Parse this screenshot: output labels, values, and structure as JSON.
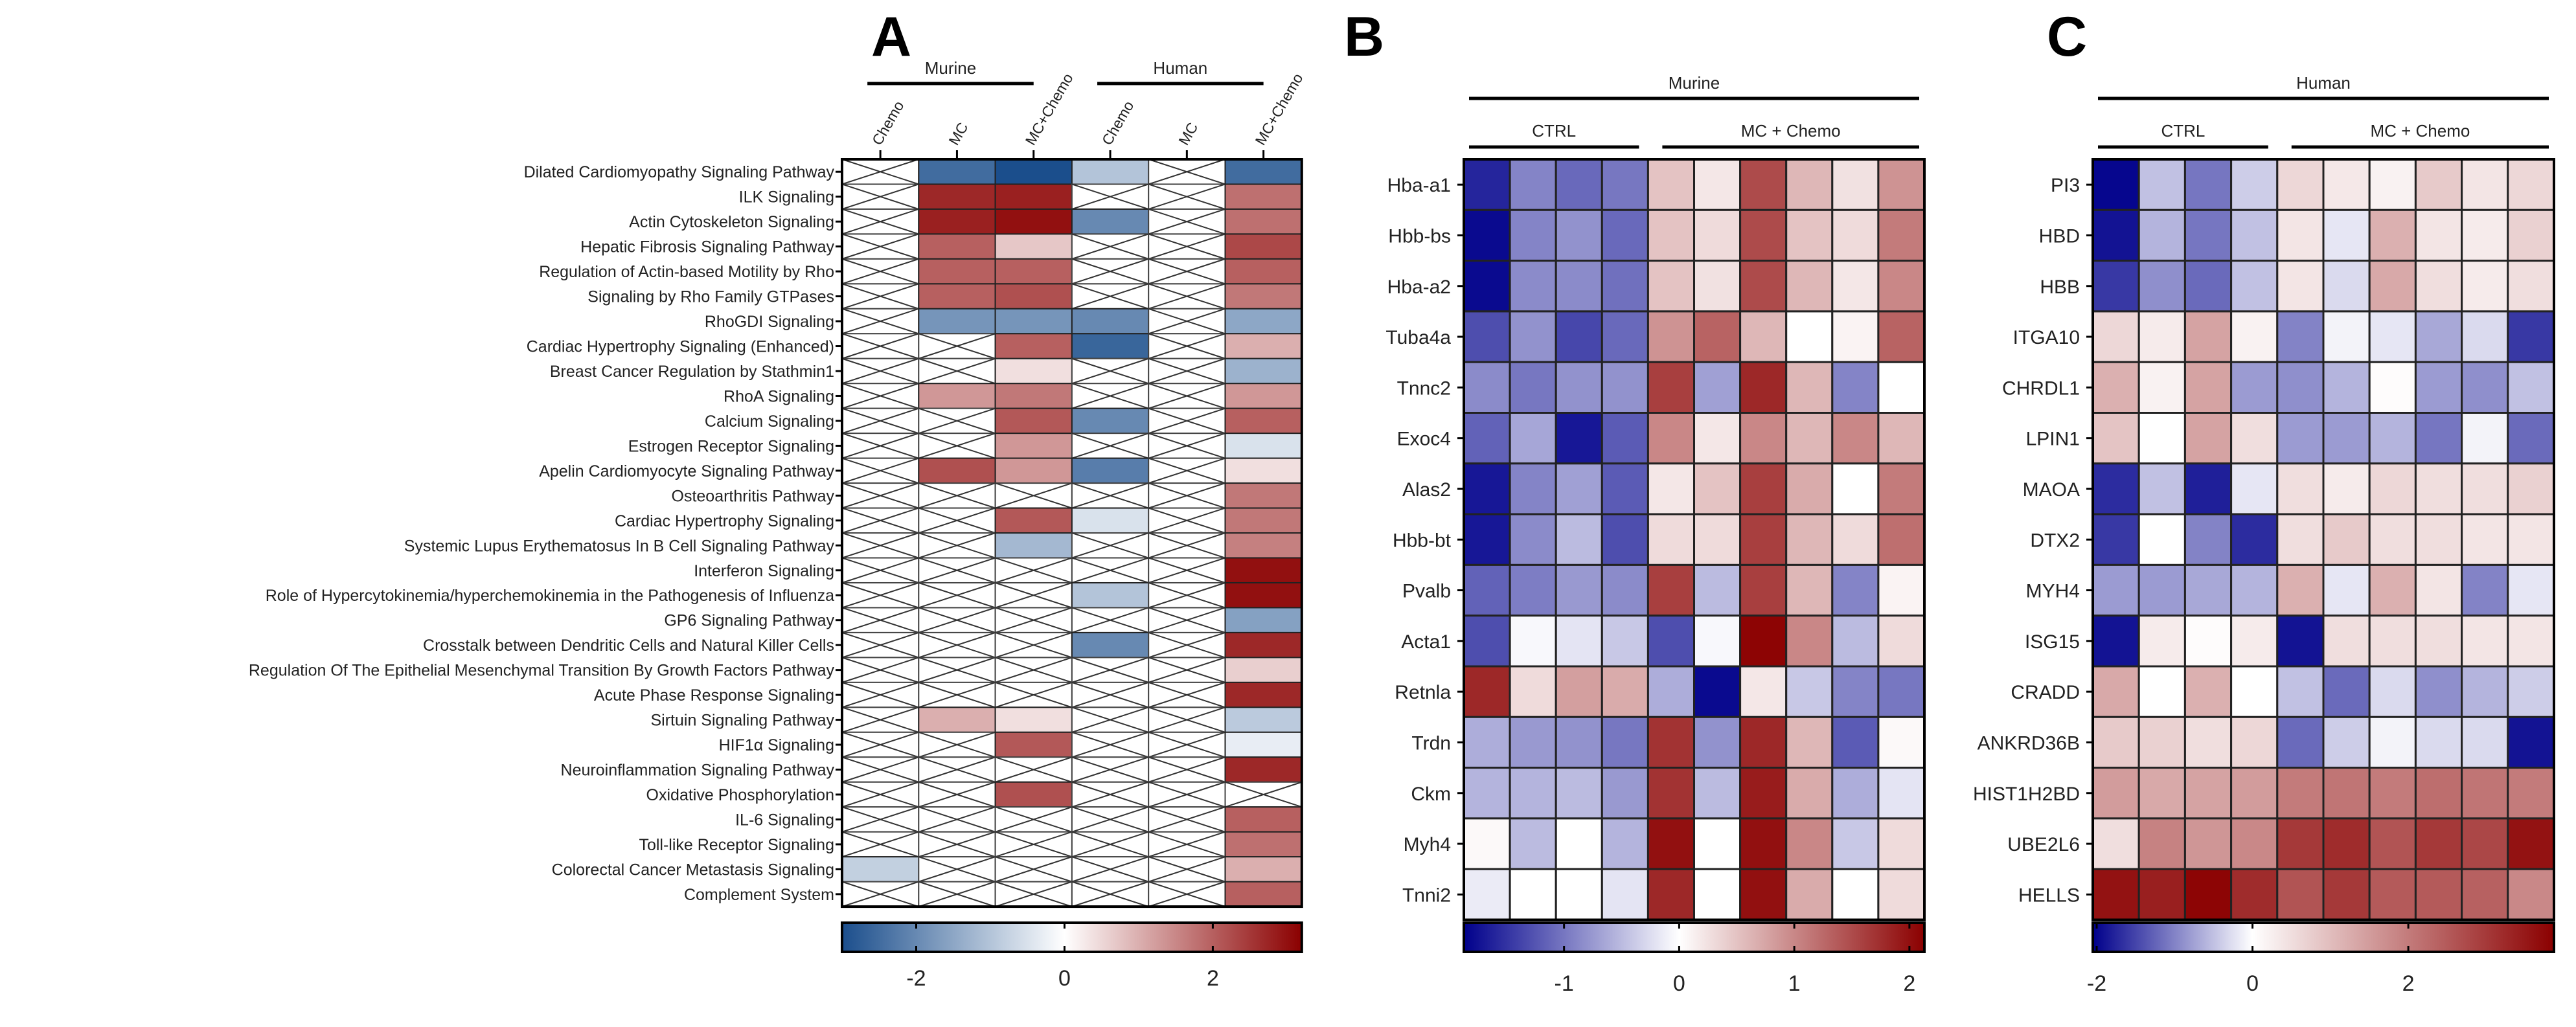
{
  "chart_data": [
    {
      "type": "heatmap",
      "panel_letter": "A",
      "column_groups": [
        {
          "label": "Murine",
          "columns": [
            0,
            1,
            2
          ]
        },
        {
          "label": "Human",
          "columns": [
            3,
            4,
            5
          ]
        }
      ],
      "columns": [
        "Chemo",
        "MC",
        "MC+Chemo",
        "Chemo",
        "MC",
        "MC+Chemo"
      ],
      "rows": [
        "Dilated Cardiomyopathy Signaling Pathway",
        "ILK Signaling",
        "Actin Cytoskeleton Signaling",
        "Hepatic Fibrosis Signaling Pathway",
        "Regulation of Actin-based Motility by Rho",
        "Signaling by Rho Family GTPases",
        "RhoGDI Signaling",
        "Cardiac Hypertrophy Signaling (Enhanced)",
        "Breast Cancer Regulation by Stathmin1",
        "RhoA Signaling",
        "Calcium Signaling",
        "Estrogen Receptor Signaling",
        "Apelin Cardiomyocyte Signaling Pathway",
        "Osteoarthritis Pathway",
        "Cardiac Hypertrophy Signaling",
        "Systemic Lupus Erythematosus In B Cell Signaling Pathway",
        "Interferon Signaling",
        "Role of Hypercytokinemia/hyperchemokinemia in the Pathogenesis of Influenza",
        "GP6 Signaling Pathway",
        "Crosstalk between Dendritic Cells and Natural Killer Cells",
        "Regulation Of The Epithelial Mesenchymal Transition By Growth Factors Pathway",
        "Acute Phase Response Signaling",
        "Sirtuin Signaling Pathway",
        "HIF1α Signaling",
        "Neuroinflammation Signaling Pathway",
        "Oxidative Phosphorylation",
        "IL-6 Signaling",
        "Toll-like Receptor Signaling",
        "Colorectal Cancer Metastasis Signaling",
        "Complement System"
      ],
      "values": [
        [
          null,
          -2.5,
          -3.0,
          -1.0,
          null,
          -2.5
        ],
        [
          null,
          2.7,
          2.8,
          null,
          null,
          1.8
        ],
        [
          null,
          2.8,
          3.0,
          -2.0,
          null,
          1.8
        ],
        [
          null,
          2.0,
          0.7,
          null,
          null,
          2.3
        ],
        [
          null,
          2.0,
          2.0,
          null,
          null,
          2.0
        ],
        [
          null,
          2.0,
          2.2,
          null,
          null,
          1.7
        ],
        [
          null,
          -1.8,
          -1.8,
          -2.0,
          null,
          -1.5
        ],
        [
          null,
          null,
          2.0,
          -2.6,
          null,
          1.0
        ],
        [
          null,
          null,
          0.4,
          null,
          null,
          -1.3
        ],
        [
          null,
          1.3,
          1.7,
          null,
          null,
          1.3
        ],
        [
          null,
          null,
          2.1,
          -2.0,
          null,
          2.0
        ],
        [
          null,
          null,
          1.3,
          null,
          null,
          -0.5
        ],
        [
          null,
          2.2,
          1.3,
          -2.2,
          null,
          0.4
        ],
        [
          null,
          null,
          null,
          null,
          null,
          1.7
        ],
        [
          null,
          null,
          2.1,
          -0.5,
          null,
          1.7
        ],
        [
          null,
          null,
          -1.2,
          null,
          null,
          1.6
        ],
        [
          null,
          null,
          null,
          null,
          null,
          3.0
        ],
        [
          null,
          null,
          null,
          -1.0,
          null,
          3.0
        ],
        [
          null,
          null,
          null,
          null,
          null,
          -1.6
        ],
        [
          null,
          null,
          null,
          -2.0,
          null,
          2.7
        ],
        [
          null,
          null,
          null,
          null,
          null,
          0.6
        ],
        [
          null,
          null,
          null,
          null,
          null,
          2.7
        ],
        [
          null,
          1.0,
          0.4,
          null,
          null,
          -0.9
        ],
        [
          null,
          null,
          2.1,
          null,
          null,
          -0.3
        ],
        [
          null,
          null,
          null,
          null,
          null,
          2.7
        ],
        [
          null,
          null,
          2.2,
          null,
          null,
          null
        ],
        [
          null,
          null,
          null,
          null,
          null,
          2.0
        ],
        [
          null,
          null,
          null,
          null,
          null,
          1.8
        ],
        [
          -0.8,
          null,
          null,
          null,
          null,
          1.0
        ],
        [
          null,
          null,
          null,
          null,
          null,
          2.0
        ]
      ],
      "colorbar": {
        "min": -3.0,
        "max": 3.2,
        "ticks": [
          "-2",
          "0",
          "2"
        ]
      },
      "colors": {
        "low": "#1b4e8c",
        "mid": "#ffffff",
        "high": "#8b0000"
      }
    },
    {
      "type": "heatmap",
      "panel_letter": "B",
      "top_group": "Murine",
      "column_groups": [
        {
          "label": "CTRL",
          "columns": [
            0,
            1,
            2,
            3
          ]
        },
        {
          "label": "MC + Chemo",
          "columns": [
            4,
            5,
            6,
            7,
            8,
            9
          ]
        }
      ],
      "rows": [
        "Hba-a1",
        "Hbb-bs",
        "Hba-a2",
        "Tuba4a",
        "Tnnc2",
        "Exoc4",
        "Alas2",
        "Hbb-bt",
        "Pvalb",
        "Acta1",
        "Retnla",
        "Trdn",
        "Ckm",
        "Myh4",
        "Tnni2"
      ],
      "values": [
        [
          -1.6,
          -0.9,
          -1.1,
          -1.0,
          0.5,
          0.2,
          1.5,
          0.6,
          0.25,
          0.9
        ],
        [
          -1.8,
          -0.9,
          -0.8,
          -1.1,
          0.5,
          0.3,
          1.5,
          0.5,
          0.3,
          1.1
        ],
        [
          -1.8,
          -0.85,
          -0.85,
          -1.05,
          0.5,
          0.25,
          1.5,
          0.6,
          0.2,
          1.0
        ],
        [
          -1.3,
          -0.8,
          -1.35,
          -1.1,
          0.9,
          1.3,
          0.6,
          0.0,
          0.1,
          1.3
        ],
        [
          -0.85,
          -1.0,
          -0.8,
          -0.8,
          1.6,
          -0.7,
          1.8,
          0.6,
          -0.9,
          0.0
        ],
        [
          -1.15,
          -0.65,
          -1.7,
          -1.2,
          1.0,
          0.2,
          1.0,
          0.6,
          1.0,
          0.6
        ],
        [
          -1.7,
          -0.9,
          -0.7,
          -1.2,
          0.2,
          0.5,
          1.6,
          0.7,
          0.0,
          1.1
        ],
        [
          -1.7,
          -0.85,
          -0.5,
          -1.3,
          0.3,
          0.3,
          1.6,
          0.6,
          0.3,
          1.2
        ],
        [
          -1.15,
          -0.95,
          -0.75,
          -0.85,
          1.6,
          -0.5,
          1.6,
          0.6,
          -0.9,
          0.1
        ],
        [
          -1.3,
          -0.05,
          -0.2,
          -0.4,
          -1.3,
          -0.05,
          2.1,
          1.0,
          -0.5,
          0.3
        ],
        [
          1.8,
          0.3,
          0.8,
          0.7,
          -0.6,
          -1.8,
          0.2,
          -0.4,
          -0.9,
          -1.0
        ],
        [
          -0.6,
          -0.75,
          -0.8,
          -1.0,
          1.7,
          -0.8,
          1.8,
          0.6,
          -1.2,
          0.05
        ],
        [
          -0.55,
          -0.55,
          -0.5,
          -0.75,
          1.7,
          -0.5,
          1.9,
          0.7,
          -0.6,
          -0.2
        ],
        [
          0.05,
          -0.5,
          0.0,
          -0.55,
          2.0,
          0.0,
          2.0,
          1.0,
          -0.4,
          0.3
        ],
        [
          -0.15,
          0.0,
          0.0,
          -0.2,
          1.8,
          0.0,
          2.0,
          0.7,
          0.0,
          0.3
        ]
      ],
      "colorbar": {
        "min": -1.87,
        "max": 2.13,
        "ticks": [
          "-1",
          "0",
          "1",
          "2"
        ]
      },
      "colors": {
        "low": "#00008b",
        "mid": "#ffffff",
        "high": "#8b0000"
      }
    },
    {
      "type": "heatmap",
      "panel_letter": "C",
      "top_group": "Human",
      "column_groups": [
        {
          "label": "CTRL",
          "columns": [
            0,
            1,
            2,
            3
          ]
        },
        {
          "label": "MC + Chemo",
          "columns": [
            4,
            5,
            6,
            7,
            8,
            9
          ]
        }
      ],
      "rows": [
        "PI3",
        "HBD",
        "HBB",
        "ITGA10",
        "CHRDL1",
        "LPIN1",
        "MAOA",
        "DTX2",
        "MYH4",
        "ISG15",
        "CRADD",
        "ANKRD36B",
        "HIST1H2BD",
        "UBE2L6",
        "HELLS"
      ],
      "values": [
        [
          -2.0,
          -0.5,
          -1.1,
          -0.4,
          0.6,
          0.35,
          0.2,
          0.8,
          0.4,
          0.6
        ],
        [
          -1.9,
          -0.6,
          -1.1,
          -0.5,
          0.4,
          -0.2,
          1.2,
          0.4,
          0.3,
          0.7
        ],
        [
          -1.6,
          -0.9,
          -1.2,
          -0.5,
          0.4,
          -0.3,
          1.3,
          0.5,
          0.3,
          0.5
        ],
        [
          0.6,
          0.3,
          1.4,
          0.2,
          -1.0,
          -0.1,
          -0.2,
          -0.7,
          -0.3,
          -1.6
        ],
        [
          1.2,
          0.2,
          1.4,
          -0.8,
          -0.9,
          -0.6,
          0.05,
          -0.8,
          -0.9,
          -0.5
        ],
        [
          0.9,
          0.0,
          1.4,
          0.5,
          -0.8,
          -0.8,
          -0.6,
          -1.1,
          -0.1,
          -1.2
        ],
        [
          -1.7,
          -0.5,
          -1.8,
          -0.2,
          0.5,
          0.3,
          0.6,
          0.5,
          0.5,
          0.7
        ],
        [
          -1.6,
          0.0,
          -1.0,
          -1.7,
          0.5,
          0.8,
          0.5,
          0.5,
          0.4,
          0.4
        ],
        [
          -0.8,
          -0.8,
          -0.7,
          -0.6,
          1.2,
          -0.2,
          1.2,
          0.4,
          -1.0,
          -0.2
        ],
        [
          -1.9,
          0.3,
          0.05,
          0.3,
          -1.9,
          0.5,
          0.5,
          0.5,
          0.4,
          0.4
        ],
        [
          1.3,
          0.0,
          1.2,
          0.0,
          -0.5,
          -1.2,
          -0.3,
          -0.9,
          -0.6,
          -0.4
        ],
        [
          0.8,
          0.7,
          0.5,
          0.6,
          -1.2,
          -0.4,
          -0.1,
          -0.3,
          -0.3,
          -1.9
        ],
        [
          1.5,
          1.3,
          1.4,
          1.5,
          2.0,
          2.1,
          2.0,
          2.2,
          2.1,
          2.0
        ],
        [
          0.5,
          1.9,
          1.6,
          1.8,
          3.0,
          3.2,
          2.6,
          3.0,
          2.8,
          3.6
        ],
        [
          3.6,
          3.4,
          3.8,
          3.2,
          2.6,
          3.0,
          2.5,
          2.5,
          2.4,
          1.8
        ]
      ],
      "colorbar": {
        "min": -2.05,
        "max": 3.87,
        "ticks": [
          "-2",
          "0",
          "2"
        ]
      },
      "colors": {
        "low": "#00008b",
        "mid": "#ffffff",
        "high": "#8b0000"
      }
    }
  ]
}
